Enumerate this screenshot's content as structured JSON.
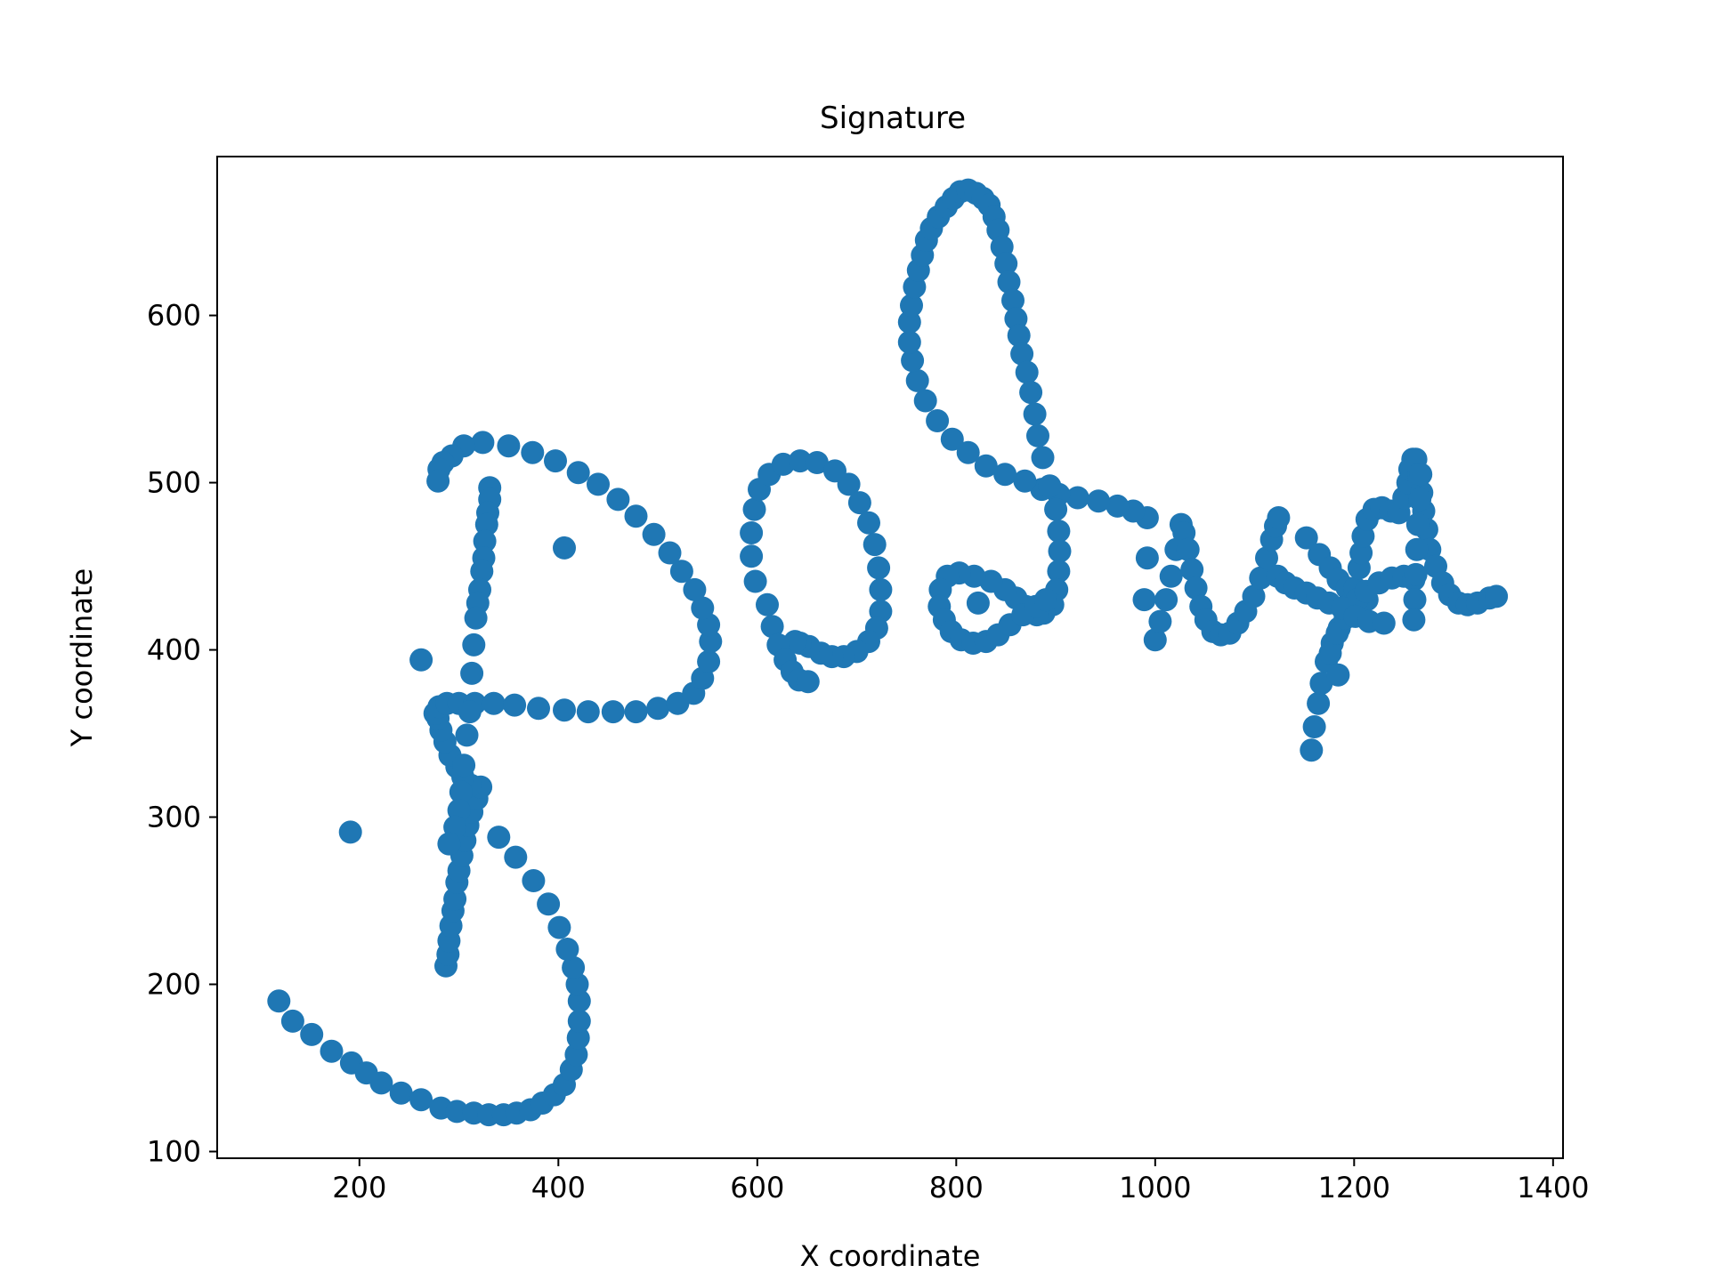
{
  "colors": {
    "point": "#1f77b4",
    "axis": "#000000",
    "background": "#ffffff"
  },
  "chart_data": {
    "type": "scatter",
    "title": "Signature",
    "xlabel": "X coordinate",
    "ylabel": "Y coordinate",
    "xlim": [
      57,
      1410
    ],
    "ylim": [
      96,
      695
    ],
    "xticks": [
      200,
      400,
      600,
      800,
      1000,
      1200,
      1400
    ],
    "yticks": [
      100,
      200,
      300,
      400,
      500,
      600
    ],
    "grid": false,
    "legend": "none",
    "series": [
      {
        "values": [
          [
            287,
            211
          ],
          [
            289,
            218
          ],
          [
            290,
            226
          ],
          [
            292,
            235
          ],
          [
            294,
            244
          ],
          [
            296,
            251
          ],
          [
            298,
            261
          ],
          [
            300,
            268
          ],
          [
            303,
            277
          ],
          [
            306,
            286
          ],
          [
            309,
            295
          ],
          [
            313,
            303
          ],
          [
            318,
            311
          ],
          [
            322,
            318
          ],
          [
            312,
            319
          ],
          [
            304,
            324
          ],
          [
            298,
            330
          ],
          [
            291,
            337
          ],
          [
            286,
            345
          ],
          [
            282,
            352
          ],
          [
            279,
            359
          ],
          [
            276,
            362
          ],
          [
            280,
            366
          ],
          [
            288,
            368
          ],
          [
            300,
            368
          ],
          [
            316,
            368
          ],
          [
            335,
            368
          ],
          [
            356,
            367
          ],
          [
            380,
            365
          ],
          [
            406,
            364
          ],
          [
            430,
            363
          ],
          [
            455,
            363
          ],
          [
            478,
            363
          ],
          [
            500,
            365
          ],
          [
            520,
            368
          ],
          [
            536,
            374
          ],
          [
            545,
            383
          ],
          [
            551,
            393
          ],
          [
            553,
            405
          ],
          [
            551,
            415
          ],
          [
            545,
            425
          ],
          [
            537,
            436
          ],
          [
            524,
            447
          ],
          [
            512,
            458
          ],
          [
            496,
            469
          ],
          [
            478,
            480
          ],
          [
            460,
            490
          ],
          [
            440,
            499
          ],
          [
            420,
            506
          ],
          [
            397,
            513
          ],
          [
            374,
            518
          ],
          [
            350,
            522
          ],
          [
            324,
            524
          ],
          [
            305,
            522
          ],
          [
            293,
            516
          ],
          [
            284,
            512
          ],
          [
            280,
            508
          ],
          [
            279,
            501
          ],
          [
            331,
            497
          ],
          [
            331,
            490
          ],
          [
            329,
            482
          ],
          [
            328,
            475
          ],
          [
            326,
            465
          ],
          [
            325,
            455
          ],
          [
            323,
            447
          ],
          [
            321,
            436
          ],
          [
            319,
            428
          ],
          [
            317,
            419
          ],
          [
            315,
            403
          ],
          [
            313,
            386
          ],
          [
            311,
            363
          ],
          [
            308,
            349
          ],
          [
            305,
            331
          ],
          [
            302,
            315
          ],
          [
            300,
            304
          ],
          [
            296,
            294
          ],
          [
            290,
            284
          ],
          [
            119,
            190
          ],
          [
            133,
            178
          ],
          [
            152,
            170
          ],
          [
            172,
            160
          ],
          [
            192,
            153
          ],
          [
            207,
            147
          ],
          [
            222,
            141
          ],
          [
            242,
            135
          ],
          [
            262,
            131
          ],
          [
            282,
            126
          ],
          [
            298,
            124
          ],
          [
            315,
            123
          ],
          [
            330,
            122
          ],
          [
            345,
            122
          ],
          [
            358,
            123
          ],
          [
            372,
            125
          ],
          [
            384,
            129
          ],
          [
            396,
            134
          ],
          [
            406,
            140
          ],
          [
            413,
            149
          ],
          [
            418,
            158
          ],
          [
            420,
            168
          ],
          [
            421,
            178
          ],
          [
            421,
            190
          ],
          [
            419,
            200
          ],
          [
            415,
            210
          ],
          [
            409,
            221
          ],
          [
            401,
            234
          ],
          [
            390,
            248
          ],
          [
            375,
            262
          ],
          [
            357,
            276
          ],
          [
            340,
            288
          ],
          [
            191,
            291
          ],
          [
            262,
            394
          ],
          [
            406,
            461
          ],
          [
            822,
            428
          ],
          [
            598,
            441
          ],
          [
            594,
            456
          ],
          [
            594,
            470
          ],
          [
            597,
            484
          ],
          [
            602,
            496
          ],
          [
            612,
            505
          ],
          [
            626,
            511
          ],
          [
            643,
            513
          ],
          [
            660,
            512
          ],
          [
            678,
            507
          ],
          [
            692,
            499
          ],
          [
            703,
            488
          ],
          [
            712,
            476
          ],
          [
            718,
            463
          ],
          [
            722,
            449
          ],
          [
            724,
            436
          ],
          [
            724,
            423
          ],
          [
            720,
            413
          ],
          [
            712,
            405
          ],
          [
            700,
            399
          ],
          [
            687,
            396
          ],
          [
            675,
            396
          ],
          [
            664,
            398
          ],
          [
            652,
            402
          ],
          [
            643,
            404
          ],
          [
            638,
            405
          ],
          [
            610,
            427
          ],
          [
            615,
            414
          ],
          [
            621,
            403
          ],
          [
            628,
            394
          ],
          [
            635,
            387
          ],
          [
            642,
            382
          ],
          [
            651,
            381
          ],
          [
            992,
            479
          ],
          [
            978,
            483
          ],
          [
            962,
            486
          ],
          [
            943,
            489
          ],
          [
            922,
            491
          ],
          [
            903,
            493
          ],
          [
            886,
            496
          ],
          [
            869,
            501
          ],
          [
            849,
            505
          ],
          [
            830,
            510
          ],
          [
            812,
            518
          ],
          [
            796,
            526
          ],
          [
            781,
            537
          ],
          [
            769,
            549
          ],
          [
            761,
            561
          ],
          [
            756,
            573
          ],
          [
            753,
            584
          ],
          [
            753,
            596
          ],
          [
            755,
            606
          ],
          [
            758,
            617
          ],
          [
            762,
            627
          ],
          [
            766,
            636
          ],
          [
            770,
            645
          ],
          [
            775,
            652
          ],
          [
            782,
            659
          ],
          [
            790,
            665
          ],
          [
            797,
            670
          ],
          [
            804,
            674
          ],
          [
            812,
            675
          ],
          [
            820,
            673
          ],
          [
            827,
            670
          ],
          [
            833,
            666
          ],
          [
            838,
            659
          ],
          [
            842,
            651
          ],
          [
            846,
            641
          ],
          [
            850,
            631
          ],
          [
            853,
            620
          ],
          [
            857,
            609
          ],
          [
            860,
            598
          ],
          [
            863,
            588
          ],
          [
            866,
            577
          ],
          [
            871,
            566
          ],
          [
            875,
            554
          ],
          [
            879,
            541
          ],
          [
            882,
            528
          ],
          [
            887,
            515
          ],
          [
            894,
            498
          ],
          [
            900,
            484
          ],
          [
            903,
            471
          ],
          [
            904,
            459
          ],
          [
            903,
            447
          ],
          [
            901,
            436
          ],
          [
            897,
            427
          ],
          [
            888,
            422
          ],
          [
            881,
            421
          ],
          [
            870,
            426
          ],
          [
            860,
            431
          ],
          [
            849,
            436
          ],
          [
            835,
            441
          ],
          [
            818,
            444
          ],
          [
            803,
            446
          ],
          [
            791,
            444
          ],
          [
            784,
            436
          ],
          [
            783,
            426
          ],
          [
            788,
            418
          ],
          [
            795,
            411
          ],
          [
            805,
            406
          ],
          [
            817,
            404
          ],
          [
            830,
            405
          ],
          [
            842,
            409
          ],
          [
            854,
            415
          ],
          [
            867,
            421
          ],
          [
            880,
            426
          ],
          [
            890,
            430
          ],
          [
            1000,
            406
          ],
          [
            1005,
            417
          ],
          [
            1011,
            430
          ],
          [
            1016,
            444
          ],
          [
            1021,
            460
          ],
          [
            1026,
            475
          ],
          [
            1029,
            470
          ],
          [
            1033,
            460
          ],
          [
            1037,
            448
          ],
          [
            1041,
            437
          ],
          [
            1046,
            426
          ],
          [
            1051,
            418
          ],
          [
            1058,
            411
          ],
          [
            1066,
            409
          ],
          [
            1075,
            410
          ],
          [
            1083,
            416
          ],
          [
            1091,
            423
          ],
          [
            1099,
            432
          ],
          [
            1106,
            443
          ],
          [
            1112,
            455
          ],
          [
            1117,
            466
          ],
          [
            1121,
            474
          ],
          [
            1124,
            479
          ],
          [
            992,
            455
          ],
          [
            989,
            430
          ],
          [
            1152,
            467
          ],
          [
            1165,
            457
          ],
          [
            1176,
            449
          ],
          [
            1184,
            442
          ],
          [
            1193,
            437
          ],
          [
            1202,
            432
          ],
          [
            1213,
            430
          ],
          [
            1157,
            340
          ],
          [
            1160,
            354
          ],
          [
            1164,
            368
          ],
          [
            1167,
            380
          ],
          [
            1172,
            393
          ],
          [
            1178,
            404
          ],
          [
            1185,
            413
          ],
          [
            1192,
            421
          ],
          [
            1197,
            428
          ],
          [
            1201,
            437
          ],
          [
            1205,
            449
          ],
          [
            1207,
            458
          ],
          [
            1209,
            468
          ],
          [
            1213,
            478
          ],
          [
            1220,
            484
          ],
          [
            1228,
            485
          ],
          [
            1237,
            483
          ],
          [
            1245,
            482
          ],
          [
            1250,
            491
          ],
          [
            1254,
            500
          ],
          [
            1256,
            508
          ],
          [
            1259,
            514
          ],
          [
            1262,
            514
          ],
          [
            1265,
            505
          ],
          [
            1268,
            494
          ],
          [
            1270,
            483
          ],
          [
            1273,
            472
          ],
          [
            1276,
            460
          ],
          [
            1282,
            450
          ],
          [
            1289,
            440
          ],
          [
            1296,
            433
          ],
          [
            1305,
            428
          ],
          [
            1314,
            427
          ],
          [
            1324,
            428
          ],
          [
            1336,
            431
          ],
          [
            1343,
            432
          ],
          [
            1184,
            385
          ],
          [
            1176,
            398
          ],
          [
            1183,
            410
          ],
          [
            1191,
            419
          ],
          [
            1203,
            430
          ],
          [
            1212,
            435
          ],
          [
            1225,
            440
          ],
          [
            1238,
            443
          ],
          [
            1250,
            444
          ],
          [
            1260,
            442
          ],
          [
            1267,
            505
          ],
          [
            1266,
            490
          ],
          [
            1264,
            475
          ],
          [
            1263,
            460
          ],
          [
            1262,
            445
          ],
          [
            1261,
            430
          ],
          [
            1260,
            418
          ],
          [
            1123,
            444
          ],
          [
            1131,
            440
          ],
          [
            1140,
            437
          ],
          [
            1152,
            434
          ],
          [
            1163,
            431
          ],
          [
            1175,
            428
          ],
          [
            1188,
            425
          ],
          [
            1201,
            420
          ],
          [
            1215,
            417
          ],
          [
            1230,
            416
          ]
        ]
      }
    ]
  }
}
